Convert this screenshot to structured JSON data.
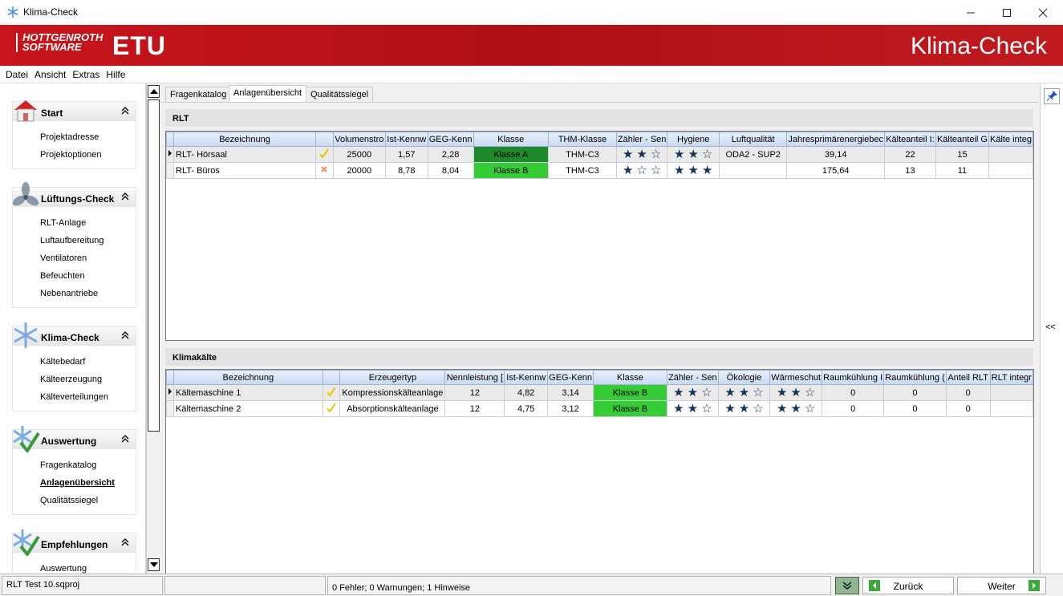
{
  "window": {
    "title": "Klima-Check"
  },
  "header": {
    "logo_line1": "HOTTGENROTH",
    "logo_line2": "SOFTWARE",
    "logo_etu": "ETU",
    "app_title": "Klima-Check"
  },
  "menu": [
    "Datei",
    "Ansicht",
    "Extras",
    "Hilfe"
  ],
  "sidebar": [
    {
      "title": "Start",
      "items": [
        "Projektadresse",
        "Projektoptionen"
      ]
    },
    {
      "title": "Lüftungs-Check",
      "items": [
        "RLT-Anlage",
        "Luftaufbereitung",
        "Ventilatoren",
        "Befeuchten",
        "Nebenantriebe"
      ]
    },
    {
      "title": "Klima-Check",
      "items": [
        "Kältebedarf",
        "Kälteerzeugung",
        "Kälteverteilungen"
      ]
    },
    {
      "title": "Auswertung",
      "items": [
        "Fragenkatalog",
        "Anlagenübersicht",
        "Qualitätssiegel"
      ]
    },
    {
      "title": "Empfehlungen",
      "items": [
        "Auswertung"
      ]
    }
  ],
  "tabs": [
    "Fragenkatalog",
    "Anlagenübersicht",
    "Qualitätssiegel"
  ],
  "rlt": {
    "title": "RLT",
    "columns": [
      "Bezeichnung",
      "Volumenstro",
      "Ist-Kennw",
      "GEG-Kenn",
      "Klasse",
      "THM-Klasse",
      "Zähler - Sen",
      "Hygiene",
      "Luftqualität",
      "Jahresprimärenergiebec",
      "Kälteanteil I:",
      "Kälteanteil G",
      "Kälte integ"
    ],
    "rows": [
      {
        "name": "RLT- Hörsaal",
        "volume": 25000,
        "ist": "1,57",
        "geg": "2,28",
        "klasse": "Klasse A",
        "thm": "THM-C3",
        "zaehler": 2,
        "hygiene": 2,
        "luft": "ODA2 - SUP2",
        "primaer": "39,14",
        "kaelte_ist": 22,
        "kaelte_geg": 15
      },
      {
        "name": "RLT- Büros",
        "volume": 20000,
        "ist": "8,78",
        "geg": "8,04",
        "klasse": "Klasse B",
        "thm": "THM-C3",
        "zaehler": 1,
        "hygiene": 3,
        "primaer": "175,64",
        "kaelte_ist": 13,
        "kaelte_geg": 11
      }
    ]
  },
  "klima": {
    "title": "Klimakälte",
    "columns": [
      "Bezeichnung",
      "Erzeugertyp",
      "Nennleistung [",
      "Ist-Kennw",
      "GEG-Kenn",
      "Klasse",
      "Zähler - Sen",
      "Ökologie",
      "Wärmeschut",
      "Raumkühlung I",
      "Raumkühlung (",
      "Anteil RLT",
      "RLT integr"
    ],
    "rows": [
      {
        "name": "Kältemaschine 1",
        "typ": "Kompressionskälteanlage",
        "nenn": 12,
        "ist": "4,82",
        "geg": "3,14",
        "klasse": "Klasse B",
        "zaehler": 2,
        "oeko": 2,
        "waerme": 2,
        "raum1": 0,
        "raum2": 0,
        "anteil": 0
      },
      {
        "name": "Kältemaschine 2",
        "typ": "Absorptionskälteanlage",
        "nenn": 12,
        "ist": "4,75",
        "geg": "3,12",
        "klasse": "Klasse B",
        "zaehler": 2,
        "oeko": 2,
        "waerme": 2,
        "raum1": 0,
        "raum2": 0,
        "anteil": 0
      }
    ]
  },
  "status": {
    "file": "RLT Test 10.sqproj",
    "messages": "0 Fehler; 0 Warnungen; 1 Hinweise",
    "back": "Zurück",
    "next": "Weiter",
    "collapse": "<<"
  }
}
